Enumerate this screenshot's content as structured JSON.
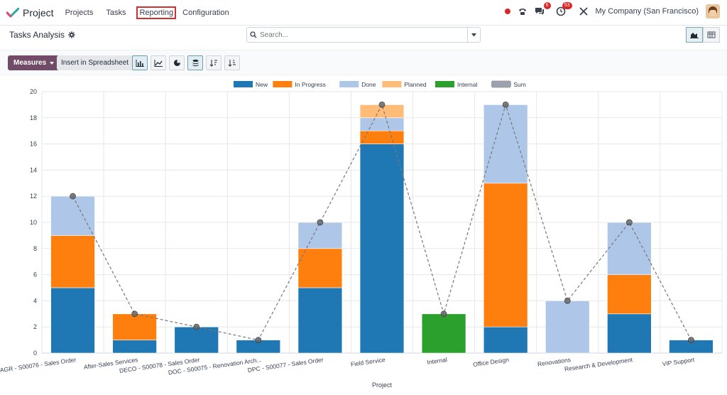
{
  "app": {
    "name": "Project",
    "menu": [
      {
        "label": "Projects"
      },
      {
        "label": "Tasks"
      },
      {
        "label": "Reporting",
        "active": true
      },
      {
        "label": "Configuration"
      }
    ],
    "company": "My Company (San Francisco)",
    "chat_badge": "6",
    "activity_badge": "53"
  },
  "page": {
    "title": "Tasks Analysis",
    "search_placeholder": "Search..."
  },
  "toolbar": {
    "measures_label": "Measures",
    "insert_label": "Insert in Spreadsheet"
  },
  "colors": {
    "brand": "#714b67",
    "new": "#1f77b4",
    "in_progress": "#ff7f0e",
    "done": "#aec7e8",
    "planned": "#ffbb78",
    "internal": "#2ca02c",
    "sum": "#777777"
  },
  "chart_data": {
    "type": "bar",
    "stacked": true,
    "xlabel": "Project",
    "ylabel": "",
    "ylim": [
      0,
      20
    ],
    "yticks": [
      0,
      2,
      4,
      6,
      8,
      10,
      12,
      14,
      16,
      18,
      20
    ],
    "grid": true,
    "legend_position": "top-center",
    "categories": [
      "AGR - S00076 - Sales Order",
      "After-Sales Services",
      "DECO - S00078 - Sales Order",
      "DOC - S00075 - Renovation Arch...",
      "DPC - S00077 - Sales Order",
      "Field Service",
      "Internal",
      "Office Design",
      "Renovations",
      "Research & Development",
      "VIP Support"
    ],
    "series": [
      {
        "name": "New",
        "color": "#1f77b4",
        "values": [
          5,
          1,
          2,
          1,
          5,
          16,
          0,
          2,
          0,
          3,
          1
        ]
      },
      {
        "name": "In Progress",
        "color": "#ff7f0e",
        "values": [
          4,
          2,
          0,
          0,
          3,
          1,
          0,
          11,
          0,
          3,
          0
        ]
      },
      {
        "name": "Done",
        "color": "#aec7e8",
        "values": [
          3,
          0,
          0,
          0,
          2,
          1,
          0,
          6,
          4,
          4,
          0
        ]
      },
      {
        "name": "Planned",
        "color": "#ffbb78",
        "values": [
          0,
          0,
          0,
          0,
          0,
          1,
          0,
          0,
          0,
          0,
          0
        ]
      },
      {
        "name": "Internal",
        "color": "#2ca02c",
        "values": [
          0,
          0,
          0,
          0,
          0,
          0,
          3,
          0,
          0,
          0,
          0
        ]
      }
    ],
    "sum_line": {
      "name": "Sum",
      "values": [
        12,
        3,
        2,
        1,
        10,
        19,
        3,
        19,
        4,
        10,
        1
      ]
    }
  }
}
